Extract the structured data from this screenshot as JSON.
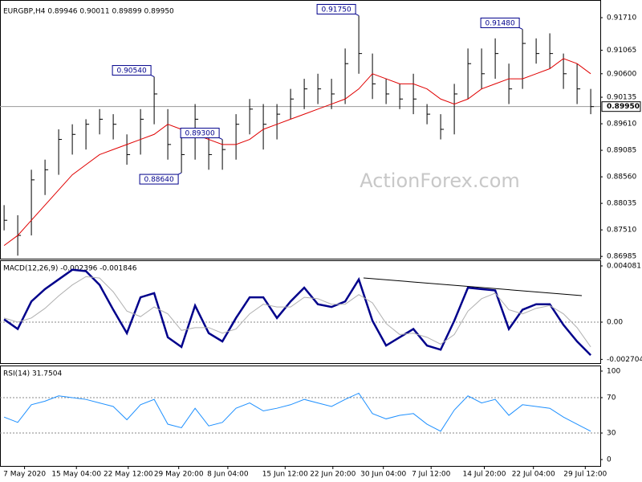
{
  "chart_data": [
    {
      "type": "ohlc",
      "title": "EURGBP,H4  0.89946 0.90011 0.89899 0.89950",
      "watermark": "ActionForex.com",
      "color": "#000000",
      "high": [
        0.88,
        0.878,
        0.887,
        0.889,
        0.895,
        0.896,
        0.897,
        0.899,
        0.898,
        0.894,
        0.899,
        0.9054,
        0.899,
        0.894,
        0.9,
        0.894,
        0.893,
        0.898,
        0.901,
        0.9,
        0.9,
        0.903,
        0.905,
        0.906,
        0.905,
        0.911,
        0.9175,
        0.91,
        0.905,
        0.904,
        0.906,
        0.9,
        0.898,
        0.904,
        0.911,
        0.911,
        0.913,
        0.908,
        0.9148,
        0.913,
        0.914,
        0.91,
        0.908,
        0.903
      ],
      "low": [
        0.875,
        0.87,
        0.874,
        0.882,
        0.886,
        0.89,
        0.891,
        0.894,
        0.893,
        0.888,
        0.89,
        0.896,
        0.889,
        0.8864,
        0.889,
        0.887,
        0.887,
        0.889,
        0.894,
        0.891,
        0.893,
        0.897,
        0.899,
        0.9,
        0.899,
        0.9,
        0.906,
        0.901,
        0.9,
        0.899,
        0.898,
        0.896,
        0.893,
        0.894,
        0.901,
        0.903,
        0.905,
        0.9,
        0.903,
        0.908,
        0.907,
        0.903,
        0.9,
        0.898
      ],
      "close": [
        0.877,
        0.874,
        0.885,
        0.887,
        0.893,
        0.894,
        0.896,
        0.897,
        0.896,
        0.89,
        0.897,
        0.902,
        0.892,
        0.89,
        0.897,
        0.89,
        0.891,
        0.896,
        0.899,
        0.896,
        0.898,
        0.901,
        0.903,
        0.903,
        0.902,
        0.908,
        0.91,
        0.904,
        0.902,
        0.901,
        0.901,
        0.898,
        0.895,
        0.902,
        0.908,
        0.906,
        0.91,
        0.903,
        0.912,
        0.91,
        0.91,
        0.906,
        0.903,
        0.8995
      ],
      "ma": {
        "color": "#e00000",
        "values": [
          0.872,
          0.874,
          0.877,
          0.88,
          0.883,
          0.886,
          0.888,
          0.89,
          0.891,
          0.892,
          0.893,
          0.894,
          0.896,
          0.895,
          0.894,
          0.893,
          0.892,
          0.892,
          0.893,
          0.895,
          0.896,
          0.897,
          0.898,
          0.899,
          0.9,
          0.901,
          0.903,
          0.906,
          0.905,
          0.904,
          0.904,
          0.903,
          0.901,
          0.9,
          0.901,
          0.903,
          0.904,
          0.905,
          0.905,
          0.906,
          0.907,
          0.909,
          0.908,
          0.906
        ]
      },
      "annotations": [
        {
          "value": 0.9054,
          "label": "0.90540"
        },
        {
          "value": 0.8864,
          "label": "0.88640"
        },
        {
          "value": 0.9175,
          "label": "0.91750"
        },
        {
          "value": 0.893,
          "label": "0.89300"
        },
        {
          "value": 0.9148,
          "label": "0.91480"
        }
      ],
      "last": {
        "value": 0.8995,
        "label": "0.89950"
      },
      "xlim": [
        -0.3,
        43.7
      ],
      "ylim": [
        0.8694,
        0.9198
      ],
      "yticks": [
        {
          "value": 0.9171,
          "label": "0.91710"
        },
        0.91065,
        {
          "value": 0.906,
          "label": "0.90600"
        },
        0.90135,
        {
          "value": 0.8961,
          "label": "0.89610"
        },
        0.89085,
        {
          "value": 0.8856,
          "label": "0.88560"
        },
        0.88035,
        {
          "value": 0.8751,
          "label": "0.87510"
        },
        0.86985
      ]
    },
    {
      "type": "macd",
      "title": "MACD(12,26,9) -0.002396 -0.001846",
      "series": [
        {
          "color": "#00008b",
          "values": [
            0.0002,
            -0.0005,
            0.0015,
            0.0024,
            0.0031,
            0.0038,
            0.0037,
            0.0027,
            0.0009,
            -0.0008,
            0.0018,
            0.0021,
            -0.0011,
            -0.0018,
            0.0012,
            -0.0008,
            -0.0014,
            0.0003,
            0.0018,
            0.0018,
            0.0003,
            0.0015,
            0.0025,
            0.0013,
            0.0011,
            0.0015,
            0.0031,
            0.0001,
            -0.0017,
            -0.0011,
            -0.0005,
            -0.0017,
            -0.002,
            0.0001,
            0.0025,
            0.0024,
            0.0023,
            -0.0005,
            0.0009,
            0.0013,
            0.0013,
            -0.0002,
            -0.0014,
            -0.0024
          ]
        },
        {
          "color": "#b0b0b0",
          "values": [
            0.0003,
            0.0,
            0.0003,
            0.001,
            0.0019,
            0.0027,
            0.0033,
            0.0032,
            0.0022,
            0.0008,
            0.0004,
            0.0011,
            0.0006,
            -0.0006,
            -0.0004,
            -0.0004,
            -0.0008,
            -0.0005,
            0.0006,
            0.0013,
            0.0011,
            0.0011,
            0.0018,
            0.0017,
            0.0013,
            0.0013,
            0.002,
            0.0014,
            -0.0001,
            -0.0009,
            -0.0008,
            -0.0011,
            -0.0016,
            -0.0009,
            0.0008,
            0.0017,
            0.0021,
            0.0009,
            0.0006,
            0.001,
            0.0012,
            0.0006,
            -0.0004,
            -0.0018
          ]
        }
      ],
      "xlim": [
        -0.3,
        43.7
      ],
      "ylim": [
        -0.002974,
        0.00443
      ],
      "yticks": [
        0.004081,
        {
          "value": 0,
          "label": "0.00"
        },
        -0.002704
      ]
    },
    {
      "type": "line",
      "title": "RSI(14) 31.7504",
      "dotted_grid": true,
      "series": [
        {
          "color": "#1e90ff",
          "values": [
            48,
            42,
            62,
            66,
            72,
            70,
            68,
            64,
            60,
            45,
            62,
            68,
            40,
            36,
            58,
            38,
            42,
            58,
            64,
            55,
            58,
            62,
            68,
            64,
            60,
            68,
            75,
            52,
            46,
            50,
            52,
            40,
            32,
            56,
            72,
            64,
            68,
            50,
            62,
            60,
            58,
            48,
            40,
            32
          ]
        }
      ],
      "xlim": [
        -0.3,
        43.7
      ],
      "ylim": [
        -7.2,
        105.4
      ],
      "yticks": [
        100,
        70,
        30,
        0
      ],
      "xticks": [
        {
          "value": 1.5,
          "label": "7 May 2020"
        },
        {
          "value": 5.3,
          "label": "15 May 04:00"
        },
        {
          "value": 9.1,
          "label": "22 May 12:00"
        },
        {
          "value": 12.8,
          "label": "29 May 20:00"
        },
        {
          "value": 16.4,
          "label": "8 Jun 04:00"
        },
        {
          "value": 20.6,
          "label": "15 Jun 12:00"
        },
        {
          "value": 24.1,
          "label": "22 Jun 20:00"
        },
        {
          "value": 27.8,
          "label": "30 Jun 04:00"
        },
        {
          "value": 31.3,
          "label": "7 Jul 12:00"
        },
        {
          "value": 35.2,
          "label": "14 Jul 20:00"
        },
        {
          "value": 38.8,
          "label": "22 Jul 04:00"
        },
        {
          "value": 42.6,
          "label": "29 Jul 12:00"
        }
      ]
    }
  ]
}
